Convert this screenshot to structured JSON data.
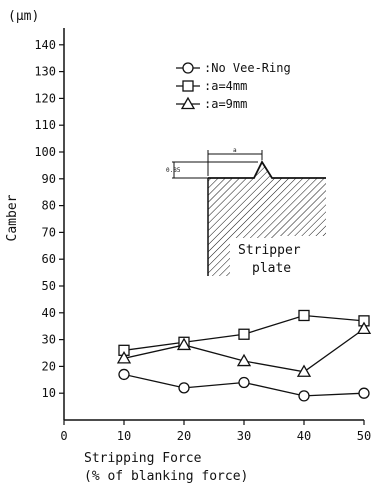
{
  "chart_data": {
    "type": "line",
    "unit_label": "(µm)",
    "xlabel_line1": "Stripping Force",
    "xlabel_line2": "(% of blanking force)",
    "ylabel": "Camber",
    "x_ticks": [
      "0",
      "10",
      "20",
      "30",
      "40",
      "50"
    ],
    "y_ticks": [
      "10",
      "20",
      "30",
      "40",
      "50",
      "60",
      "70",
      "80",
      "90",
      "100",
      "110",
      "120",
      "130",
      "140"
    ],
    "xlim": [
      0,
      60
    ],
    "ylim": [
      0,
      150
    ],
    "x": [
      10,
      20,
      30,
      40,
      50
    ],
    "series": [
      {
        "name": ":No Vee-Ring",
        "marker": "circle",
        "values": [
          17,
          12,
          14,
          9,
          10
        ]
      },
      {
        "name": ":a=4mm",
        "marker": "square",
        "values": [
          26,
          29,
          32,
          39,
          37
        ]
      },
      {
        "name": ":a=9mm",
        "marker": "triangle",
        "values": [
          23,
          28,
          22,
          18,
          34
        ]
      }
    ],
    "legend_position": "top-right",
    "grid": false,
    "inset": {
      "dim_a": "a",
      "dim_h": "0.85",
      "label_line1": "Stripper",
      "label_line2": "plate"
    }
  }
}
